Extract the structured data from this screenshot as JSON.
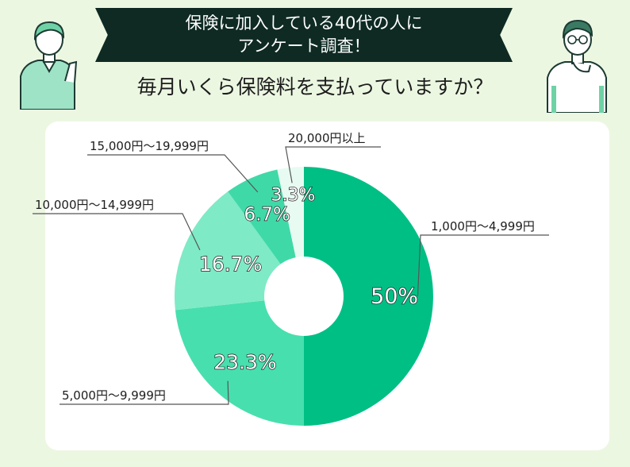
{
  "header": {
    "line1": "保険に加入している40代の人に",
    "line2": "アンケート調査！",
    "question": "毎月いくら保険料を支払っていますか？"
  },
  "colors": {
    "banner": "#0e2a23",
    "background": "#ecf7e2",
    "slices": [
      "#00bf85",
      "#47dfae",
      "#7eeac6",
      "#3fd9a8",
      "#e8fbf2"
    ]
  },
  "icons": [
    "person-pointing-icon",
    "person-thinking-icon"
  ],
  "chart_data": {
    "type": "pie",
    "donut": true,
    "categories": [
      "1,000円〜4,999円",
      "5,000円〜9,999円",
      "10,000円〜14,999円",
      "15,000円〜19,999円",
      "20,000円以上"
    ],
    "values": [
      50,
      23.3,
      16.7,
      6.7,
      3.3
    ],
    "value_labels": [
      "50%",
      "23.3%",
      "16.7%",
      "6.7%",
      "3.3%"
    ]
  }
}
